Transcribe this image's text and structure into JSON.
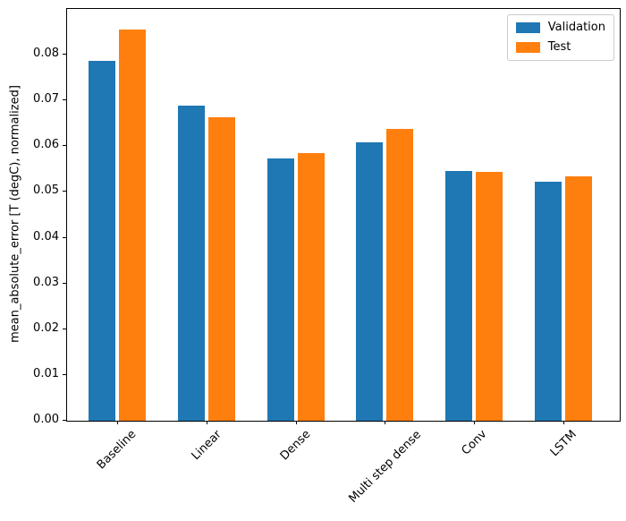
{
  "figure": {
    "background": "#ffffff"
  },
  "chart_data": {
    "type": "bar",
    "title": "",
    "xlabel": "",
    "ylabel": "mean_absolute_error [T (degC), normalized]",
    "categories": [
      "Baseline",
      "Linear",
      "Dense",
      "Multi step dense",
      "Conv",
      "LSTM"
    ],
    "series": [
      {
        "name": "Validation",
        "color": "#1f77b4",
        "values": [
          0.0786,
          0.0688,
          0.0574,
          0.0609,
          0.0546,
          0.0523
        ]
      },
      {
        "name": "Test",
        "color": "#ff7f0e",
        "values": [
          0.0855,
          0.0663,
          0.0585,
          0.0637,
          0.0544,
          0.0534
        ]
      }
    ],
    "ylim": [
      0,
      0.09
    ],
    "xlim": [
      -0.57,
      5.62
    ],
    "ytick_step": 0.01,
    "ytick_labels": [
      "0.00",
      "0.01",
      "0.02",
      "0.03",
      "0.04",
      "0.05",
      "0.06",
      "0.07",
      "0.08"
    ],
    "bar_width_ratio": 0.3,
    "bar_offset": 0.17,
    "xtick_rotation_deg": 45,
    "grid": false,
    "legend_position": "upper right"
  },
  "legend": {
    "items": [
      {
        "label": "Validation",
        "color": "#1f77b4"
      },
      {
        "label": "Test",
        "color": "#ff7f0e"
      }
    ]
  }
}
